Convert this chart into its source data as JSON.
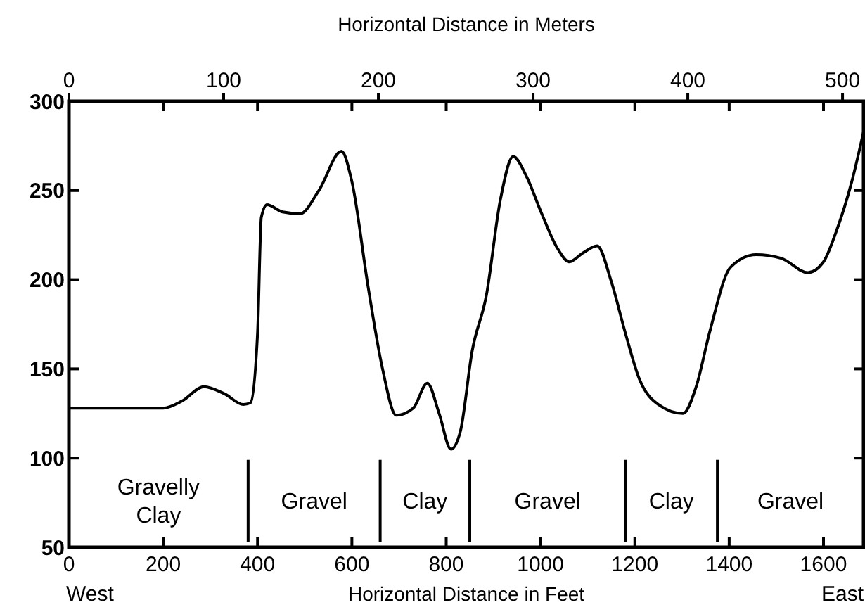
{
  "chart_data": {
    "type": "line",
    "xlabel": "Horizontal Distance in Feet",
    "x2label": "Horizontal Distance in Meters",
    "x": [
      0,
      100,
      200,
      240,
      286,
      330,
      370,
      385,
      400,
      408,
      420,
      453,
      490,
      530,
      578,
      600,
      635,
      665,
      694,
      730,
      760,
      785,
      810,
      830,
      855,
      885,
      915,
      942,
      970,
      1001,
      1035,
      1061,
      1090,
      1120,
      1150,
      1180,
      1210,
      1250,
      1302,
      1330,
      1359,
      1403,
      1457,
      1510,
      1567,
      1600,
      1627,
      1660,
      1685
    ],
    "series": [
      {
        "color": "#000000",
        "values": [
          128,
          128,
          128,
          132,
          140,
          136,
          130,
          131,
          170,
          235,
          242,
          238,
          237,
          250,
          272,
          255,
          195,
          150,
          124,
          128,
          142,
          125,
          105,
          115,
          160,
          191,
          245,
          269,
          258,
          238,
          218,
          210,
          215,
          219,
          199,
          170,
          144,
          130,
          125,
          140,
          171,
          207,
          214,
          212,
          204,
          210,
          227,
          255,
          283
        ]
      }
    ],
    "xlim": [
      0,
      1685
    ],
    "xticks": [
      0,
      200,
      400,
      600,
      800,
      1000,
      1200,
      1400,
      1600
    ],
    "x2lim": [
      0,
      513.6
    ],
    "x2ticks": [
      0,
      100,
      200,
      300,
      400,
      500
    ],
    "ylim": [
      50,
      300
    ],
    "yticks": [
      50,
      100,
      150,
      200,
      250,
      300
    ],
    "grid": false,
    "marker": "none",
    "line_style": "solid",
    "ref_lines": [
      {
        "axis": "x",
        "value": 380
      },
      {
        "axis": "x",
        "value": 660
      },
      {
        "axis": "x",
        "value": 850
      },
      {
        "axis": "x",
        "value": 1180
      },
      {
        "axis": "x",
        "value": 1375
      }
    ],
    "annotations": [
      "West",
      "East",
      "Gravelly Clay",
      "Gravel",
      "Clay",
      "Gravel",
      "Clay",
      "Gravel"
    ]
  }
}
